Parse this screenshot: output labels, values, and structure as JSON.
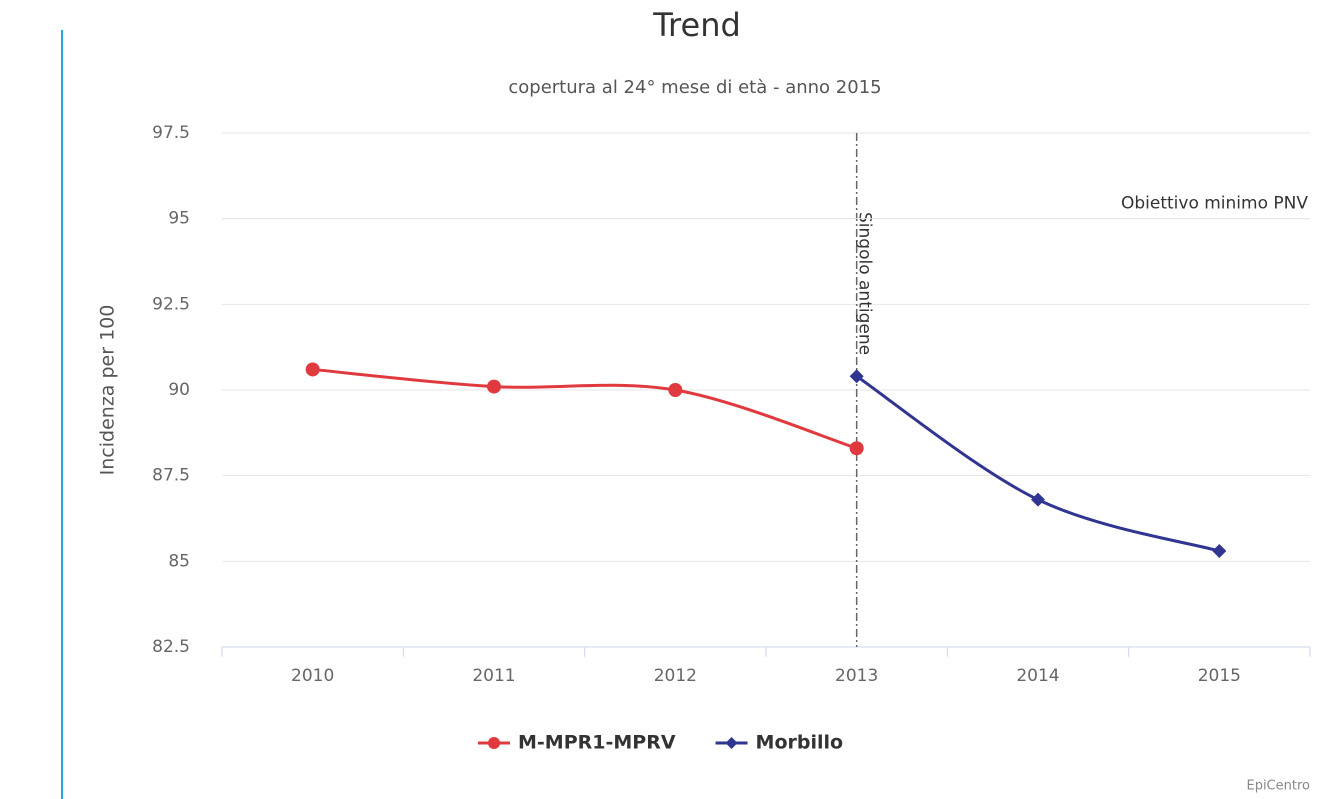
{
  "chart_data": {
    "type": "line",
    "title": "Trend",
    "subtitle": "copertura al 24° mese di età - anno 2015",
    "y_label": "Incidenza per 100",
    "credits": "EpiCentro",
    "categories": [
      "2010",
      "2011",
      "2012",
      "2013",
      "2014",
      "2015"
    ],
    "series": [
      {
        "name": "M-MPR1-MPRV",
        "color": "#e0393e",
        "marker": "circle",
        "values": [
          90.6,
          90.1,
          90.0,
          88.3,
          null,
          null
        ]
      },
      {
        "name": "Morbillo",
        "color": "#2f3590",
        "marker": "diamond",
        "values": [
          null,
          null,
          null,
          90.4,
          86.8,
          85.3
        ]
      }
    ],
    "ylim": [
      82.5,
      97.5
    ],
    "yticks": [
      82.5,
      85,
      87.5,
      90,
      92.5,
      95,
      97.5
    ],
    "grid": true,
    "legend": "bottom",
    "annotations": [
      {
        "text": "Singolo antigene",
        "x": "2013"
      },
      {
        "text": "Obiettivo minimo PNV",
        "y": 95
      }
    ]
  }
}
